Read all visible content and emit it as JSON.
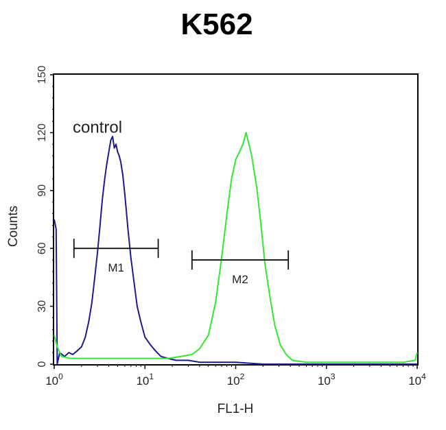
{
  "chart_data": {
    "type": "line",
    "title": "K562",
    "xlabel": "FL1-H",
    "ylabel": "Counts",
    "x_scale": "log",
    "xlim": [
      1,
      10000
    ],
    "ylim": [
      0,
      150
    ],
    "x_ticks": [
      {
        "value": 1,
        "base": "10",
        "exp": "0"
      },
      {
        "value": 10,
        "base": "10",
        "exp": "1"
      },
      {
        "value": 100,
        "base": "10",
        "exp": "2"
      },
      {
        "value": 1000,
        "base": "10",
        "exp": "3"
      },
      {
        "value": 10000,
        "base": "10",
        "exp": "4"
      }
    ],
    "y_ticks": [
      "0",
      "30",
      "60",
      "90",
      "120",
      "150"
    ],
    "annotations": [
      {
        "text": "control",
        "x": 1.6,
        "y": 120
      }
    ],
    "markers": [
      {
        "label": "M1",
        "x_start": 1.65,
        "x_end": 14,
        "y": 60,
        "label_y": 48
      },
      {
        "label": "M2",
        "x_start": 33,
        "x_end": 380,
        "y": 54,
        "label_y": 42
      }
    ],
    "series": [
      {
        "color": "#1a1a8c",
        "points": [
          [
            1.0,
            75
          ],
          [
            1.05,
            70
          ],
          [
            1.08,
            0
          ],
          [
            1.15,
            6
          ],
          [
            1.3,
            4
          ],
          [
            1.45,
            6
          ],
          [
            1.6,
            5
          ],
          [
            1.8,
            7
          ],
          [
            2.0,
            9
          ],
          [
            2.2,
            14
          ],
          [
            2.4,
            22
          ],
          [
            2.6,
            32
          ],
          [
            2.8,
            45
          ],
          [
            3.0,
            58
          ],
          [
            3.2,
            72
          ],
          [
            3.4,
            86
          ],
          [
            3.6,
            96
          ],
          [
            3.8,
            104
          ],
          [
            4.0,
            110
          ],
          [
            4.2,
            116
          ],
          [
            4.4,
            118
          ],
          [
            4.6,
            112
          ],
          [
            4.8,
            114
          ],
          [
            5.0,
            110
          ],
          [
            5.2,
            108
          ],
          [
            5.4,
            105
          ],
          [
            5.7,
            98
          ],
          [
            6.0,
            88
          ],
          [
            6.5,
            70
          ],
          [
            7.0,
            55
          ],
          [
            7.6,
            42
          ],
          [
            8.2,
            30
          ],
          [
            9.0,
            22
          ],
          [
            10.0,
            14
          ],
          [
            11.5,
            10
          ],
          [
            13.0,
            7
          ],
          [
            15.0,
            4
          ],
          [
            18.0,
            3
          ],
          [
            22.0,
            2
          ],
          [
            30.0,
            2
          ],
          [
            40.0,
            1
          ],
          [
            60.0,
            1
          ],
          [
            100.0,
            1
          ],
          [
            200.0,
            0
          ],
          [
            400.0,
            0
          ],
          [
            1000.0,
            0
          ],
          [
            3000.0,
            0
          ],
          [
            10000.0,
            0
          ]
        ]
      },
      {
        "color": "#33e633",
        "points": [
          [
            1.0,
            15
          ],
          [
            1.08,
            9
          ],
          [
            1.2,
            4
          ],
          [
            1.5,
            3
          ],
          [
            2.0,
            3
          ],
          [
            3.0,
            3
          ],
          [
            5.0,
            3
          ],
          [
            8.0,
            3
          ],
          [
            12.0,
            3
          ],
          [
            18.0,
            3
          ],
          [
            25.0,
            4
          ],
          [
            33.0,
            5
          ],
          [
            40.0,
            8
          ],
          [
            50.0,
            15
          ],
          [
            60.0,
            32
          ],
          [
            70.0,
            55
          ],
          [
            80.0,
            78
          ],
          [
            90.0,
            96
          ],
          [
            100.0,
            106
          ],
          [
            110.0,
            110
          ],
          [
            120.0,
            114
          ],
          [
            130.0,
            120
          ],
          [
            140.0,
            114
          ],
          [
            150.0,
            108
          ],
          [
            170.0,
            92
          ],
          [
            190.0,
            72
          ],
          [
            210.0,
            52
          ],
          [
            240.0,
            34
          ],
          [
            270.0,
            20
          ],
          [
            310.0,
            10
          ],
          [
            360.0,
            5
          ],
          [
            420.0,
            2
          ],
          [
            600.0,
            1
          ],
          [
            1000.0,
            1
          ],
          [
            3000.0,
            1
          ],
          [
            7000.0,
            1
          ],
          [
            9500.0,
            2
          ],
          [
            10000.0,
            6
          ]
        ]
      }
    ]
  }
}
